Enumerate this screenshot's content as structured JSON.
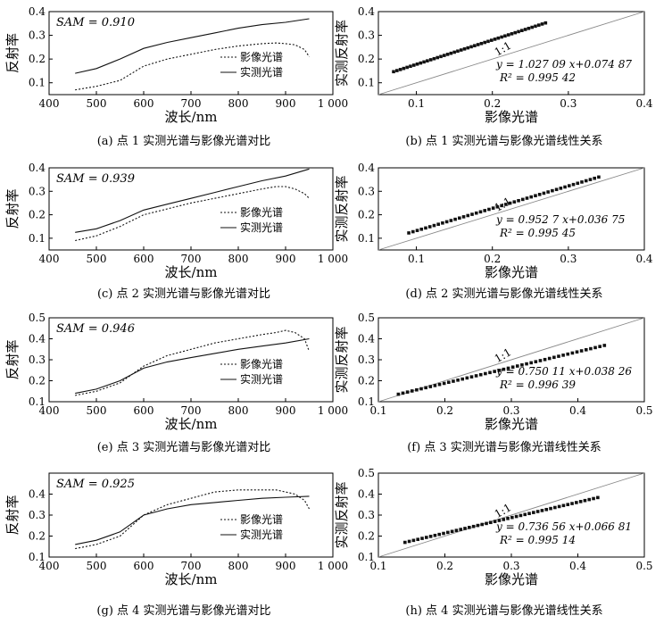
{
  "chart_data": [
    {
      "type": "line",
      "panel": "a",
      "caption": "(a) 点 1 实测光谱与影像光谱对比",
      "annotation": "SAM = 0.910",
      "xlabel": "波长/nm",
      "ylabel": "反射率",
      "xlim": [
        400,
        1000
      ],
      "ylim": [
        0.05,
        0.4
      ],
      "xticks": [
        "400",
        "500",
        "600",
        "700",
        "800",
        "900",
        "1 000"
      ],
      "yticks": [
        "0.1",
        "0.2",
        "0.3",
        "0.4"
      ],
      "legend": "right",
      "series": [
        {
          "name": "影像光谱",
          "style": "dotted",
          "x": [
            455,
            500,
            550,
            600,
            650,
            700,
            750,
            800,
            850,
            880,
            900,
            920,
            940,
            950
          ],
          "y": [
            0.07,
            0.085,
            0.11,
            0.17,
            0.2,
            0.22,
            0.24,
            0.255,
            0.265,
            0.268,
            0.265,
            0.26,
            0.24,
            0.21
          ]
        },
        {
          "name": "实测光谱",
          "style": "solid",
          "x": [
            455,
            500,
            550,
            600,
            650,
            700,
            750,
            800,
            850,
            900,
            950
          ],
          "y": [
            0.14,
            0.16,
            0.2,
            0.245,
            0.27,
            0.29,
            0.31,
            0.33,
            0.345,
            0.355,
            0.37
          ]
        }
      ]
    },
    {
      "type": "scatter",
      "panel": "b",
      "caption": "(b) 点 1 实测光谱与影像光谱线性关系",
      "xlabel": "影像光谱",
      "ylabel": "实测反射率",
      "xlim": [
        0.05,
        0.4
      ],
      "ylim": [
        0.05,
        0.4
      ],
      "xticks": [
        "0.1",
        "0.2",
        "0.3",
        "0.4"
      ],
      "yticks": [
        "0.1",
        "0.2",
        "0.3",
        "0.4"
      ],
      "oneone_label": "1:1",
      "equation": "y = 1.027 09 x+0.074 87",
      "r2": "R² = 0.995 42",
      "slope": 1.02709,
      "intercept": 0.07487,
      "x_range": [
        0.07,
        0.27
      ]
    },
    {
      "type": "line",
      "panel": "c",
      "caption": "(c) 点 2 实测光谱与影像光谱对比",
      "annotation": "SAM = 0.939",
      "xlabel": "波长/nm",
      "ylabel": "反射率",
      "xlim": [
        400,
        1000
      ],
      "ylim": [
        0.05,
        0.4
      ],
      "xticks": [
        "400",
        "500",
        "600",
        "700",
        "800",
        "900",
        "1 000"
      ],
      "yticks": [
        "0.1",
        "0.2",
        "0.3",
        "0.4"
      ],
      "legend": "right",
      "series": [
        {
          "name": "影像光谱",
          "style": "dotted",
          "x": [
            455,
            500,
            550,
            600,
            650,
            700,
            750,
            800,
            850,
            880,
            900,
            920,
            940,
            950
          ],
          "y": [
            0.09,
            0.11,
            0.15,
            0.2,
            0.225,
            0.25,
            0.27,
            0.29,
            0.31,
            0.32,
            0.32,
            0.31,
            0.29,
            0.27
          ]
        },
        {
          "name": "实测光谱",
          "style": "solid",
          "x": [
            455,
            500,
            550,
            600,
            650,
            700,
            750,
            800,
            850,
            900,
            950
          ],
          "y": [
            0.125,
            0.14,
            0.175,
            0.22,
            0.245,
            0.27,
            0.295,
            0.32,
            0.345,
            0.365,
            0.395
          ]
        }
      ]
    },
    {
      "type": "scatter",
      "panel": "d",
      "caption": "(d) 点 2 实测光谱与影像光谱线性关系",
      "xlabel": "影像光谱",
      "ylabel": "实测反射率",
      "xlim": [
        0.05,
        0.4
      ],
      "ylim": [
        0.05,
        0.4
      ],
      "xticks": [
        "0.1",
        "0.2",
        "0.3",
        "0.4"
      ],
      "yticks": [
        "0.1",
        "0.2",
        "0.3",
        "0.4"
      ],
      "oneone_label": "1:1",
      "equation": "y = 0.952 7 x+0.036 75",
      "r2": "R² = 0.995 45",
      "slope": 0.9527,
      "intercept": 0.03675,
      "x_range": [
        0.09,
        0.34
      ]
    },
    {
      "type": "line",
      "panel": "e",
      "caption": "(e) 点 3 实测光谱与影像光谱对比",
      "annotation": "SAM = 0.946",
      "xlabel": "波长/nm",
      "ylabel": "反射率",
      "xlim": [
        400,
        1000
      ],
      "ylim": [
        0.1,
        0.5
      ],
      "xticks": [
        "400",
        "500",
        "600",
        "700",
        "800",
        "900",
        "1 000"
      ],
      "yticks": [
        "0.1",
        "0.2",
        "0.3",
        "0.4",
        "0.5"
      ],
      "legend": "right",
      "series": [
        {
          "name": "影像光谱",
          "style": "dotted",
          "x": [
            455,
            500,
            550,
            600,
            650,
            700,
            750,
            800,
            850,
            880,
            900,
            920,
            940,
            950
          ],
          "y": [
            0.13,
            0.15,
            0.19,
            0.27,
            0.32,
            0.35,
            0.38,
            0.4,
            0.42,
            0.43,
            0.44,
            0.43,
            0.4,
            0.34
          ]
        },
        {
          "name": "实测光谱",
          "style": "solid",
          "x": [
            455,
            500,
            550,
            600,
            650,
            700,
            750,
            800,
            850,
            900,
            950
          ],
          "y": [
            0.14,
            0.16,
            0.2,
            0.26,
            0.29,
            0.31,
            0.33,
            0.35,
            0.365,
            0.38,
            0.4
          ]
        }
      ]
    },
    {
      "type": "scatter",
      "panel": "f",
      "caption": "(f) 点 3 实测光谱与影像光谱线性关系",
      "xlabel": "影像光谱",
      "ylabel": "实测反射率",
      "xlim": [
        0.1,
        0.5
      ],
      "ylim": [
        0.1,
        0.5
      ],
      "xticks": [
        "0.1",
        "0.2",
        "0.3",
        "0.4",
        "0.5"
      ],
      "yticks": [
        "0.1",
        "0.2",
        "0.3",
        "0.4",
        "0.5"
      ],
      "oneone_label": "1:1",
      "equation": "y = 0.750 11 x+0.038 26",
      "r2": "R² = 0.996 39",
      "slope": 0.75011,
      "intercept": 0.03826,
      "x_range": [
        0.13,
        0.44
      ]
    },
    {
      "type": "line",
      "panel": "g",
      "caption": "(g) 点 4 实测光谱与影像光谱对比",
      "annotation": "SAM = 0.925",
      "xlabel": "波长/nm",
      "ylabel": "反射率",
      "xlim": [
        400,
        1000
      ],
      "ylim": [
        0.1,
        0.5
      ],
      "xticks": [
        "400",
        "500",
        "600",
        "700",
        "800",
        "900",
        "1 000"
      ],
      "yticks": [
        "0.1",
        "0.2",
        "0.3",
        "0.4"
      ],
      "legend": "right",
      "series": [
        {
          "name": "影像光谱",
          "style": "dotted",
          "x": [
            455,
            500,
            550,
            600,
            650,
            700,
            750,
            800,
            850,
            880,
            900,
            920,
            940,
            950
          ],
          "y": [
            0.14,
            0.16,
            0.2,
            0.3,
            0.35,
            0.38,
            0.41,
            0.42,
            0.42,
            0.42,
            0.41,
            0.4,
            0.37,
            0.33
          ]
        },
        {
          "name": "实测光谱",
          "style": "solid",
          "x": [
            455,
            500,
            550,
            600,
            650,
            700,
            750,
            800,
            850,
            900,
            950
          ],
          "y": [
            0.16,
            0.18,
            0.22,
            0.3,
            0.33,
            0.35,
            0.36,
            0.37,
            0.38,
            0.385,
            0.39
          ]
        }
      ]
    },
    {
      "type": "scatter",
      "panel": "h",
      "caption": "(h) 点 4 实测光谱与影像光谱线性关系",
      "xlabel": "影像光谱",
      "ylabel": "实测反射率",
      "xlim": [
        0.1,
        0.5
      ],
      "ylim": [
        0.1,
        0.5
      ],
      "xticks": [
        "0.1",
        "0.2",
        "0.3",
        "0.4",
        "0.5"
      ],
      "yticks": [
        "0.1",
        "0.2",
        "0.3",
        "0.4",
        "0.5"
      ],
      "oneone_label": "1:1",
      "equation": "y = 0.736 56 x+0.066 81",
      "r2": "R² = 0.995 14",
      "slope": 0.73656,
      "intercept": 0.06681,
      "x_range": [
        0.14,
        0.43
      ]
    }
  ]
}
